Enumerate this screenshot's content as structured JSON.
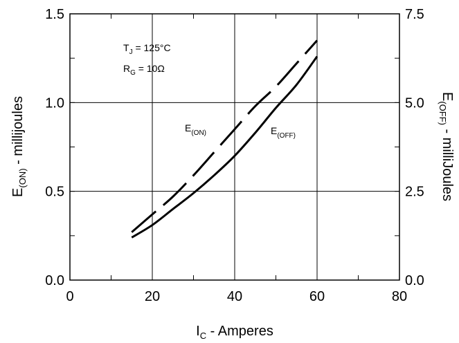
{
  "chart_data": {
    "type": "line",
    "xlabel": {
      "main": "I",
      "sub": "C",
      "rest": " - Amperes"
    },
    "ylabel_left": {
      "main": "E",
      "sub": "(ON)",
      "rest": " - millijoules"
    },
    "ylabel_right": {
      "main": "E",
      "sub": "(OFF)",
      "rest": " - milliJoules"
    },
    "xlim": [
      0,
      80
    ],
    "ylim_left": [
      0,
      1.5
    ],
    "ylim_right": [
      0,
      7.5
    ],
    "x_ticks": [
      0,
      20,
      40,
      60,
      80
    ],
    "x_tick_labels": [
      "0",
      "20",
      "40",
      "60",
      "80"
    ],
    "y_left_ticks": [
      0,
      0.5,
      1.0,
      1.5
    ],
    "y_left_tick_labels": [
      "0.0",
      "0.5",
      "1.0",
      "1.5"
    ],
    "y_right_ticks": [
      0,
      2.5,
      5.0,
      7.5
    ],
    "y_right_tick_labels": [
      "0.0",
      "2.5",
      "5.0",
      "7.5"
    ],
    "grid": true,
    "conditions": [
      {
        "main": "T",
        "sub": "J",
        "rest": " = 125°C"
      },
      {
        "main": "R",
        "sub": "G",
        "rest": " = 10Ω"
      }
    ],
    "series": [
      {
        "name": {
          "main": "E",
          "sub": "(ON)"
        },
        "axis": "left",
        "style": "dashed",
        "x": [
          15,
          20,
          25,
          30,
          35,
          40,
          45,
          50,
          55,
          60
        ],
        "y": [
          0.27,
          0.37,
          0.47,
          0.59,
          0.72,
          0.85,
          0.98,
          1.09,
          1.22,
          1.35
        ]
      },
      {
        "name": {
          "main": "E",
          "sub": "(OFF)"
        },
        "axis": "right",
        "style": "solid",
        "x": [
          15,
          20,
          25,
          30,
          35,
          40,
          45,
          50,
          55,
          60
        ],
        "y": [
          1.2,
          1.55,
          2.0,
          2.45,
          2.95,
          3.5,
          4.15,
          4.85,
          5.5,
          6.3
        ]
      }
    ]
  }
}
